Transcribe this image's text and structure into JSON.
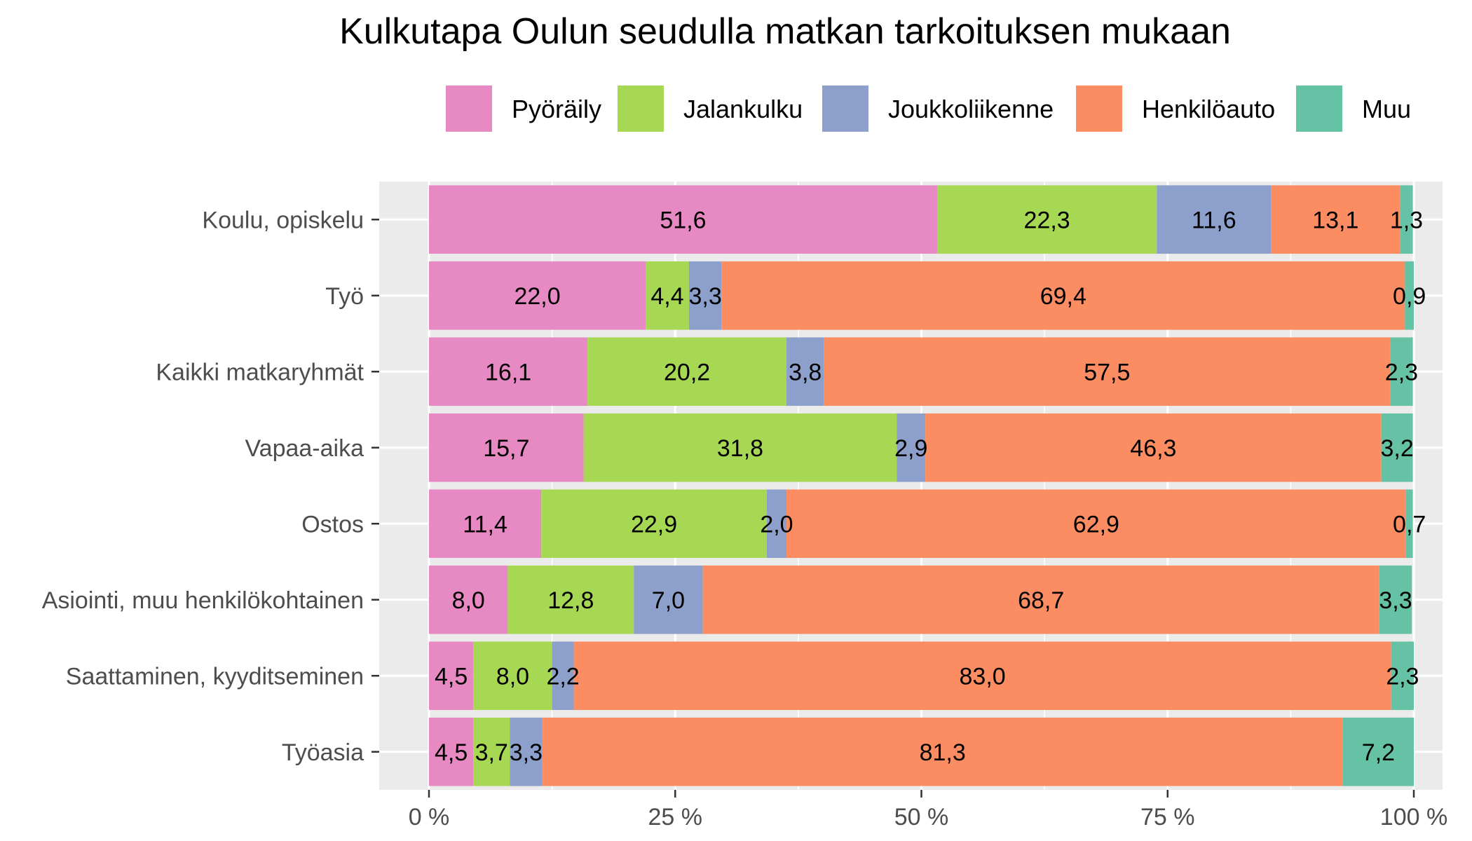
{
  "chart_data": {
    "type": "bar",
    "orientation": "horizontal",
    "stacked": true,
    "title": "Kulkutapa Oulun seudulla matkan tarkoituksen mukaan",
    "xlabel": "",
    "ylabel": "",
    "xlim": [
      0,
      100
    ],
    "x_ticks": [
      0,
      25,
      50,
      75,
      100
    ],
    "x_tick_labels": [
      "0 %",
      "25 %",
      "50 %",
      "75 %",
      "100 %"
    ],
    "grid": true,
    "legend_position": "top",
    "categories": [
      "Koulu, opiskelu",
      "Työ",
      "Kaikki matkaryhmät",
      "Vapaa-aika",
      "Ostos",
      "Asiointi, muu henkilökohtainen",
      "Saattaminen, kyyditseminen",
      "Työasia"
    ],
    "series": [
      {
        "name": "Pyöräily",
        "color": "#e78ac3",
        "values": [
          51.6,
          22.0,
          16.1,
          15.7,
          11.4,
          8.0,
          4.5,
          4.5
        ],
        "labels": [
          "51,6",
          "22,0",
          "16,1",
          "15,7",
          "11,4",
          "8,0",
          "4,5",
          "4,5"
        ]
      },
      {
        "name": "Jalankulku",
        "color": "#a6d854",
        "values": [
          22.3,
          4.4,
          20.2,
          31.8,
          22.9,
          12.8,
          8.0,
          3.7
        ],
        "labels": [
          "22,3",
          "4,4",
          "20,2",
          "31,8",
          "22,9",
          "12,8",
          "8,0",
          "3,7"
        ]
      },
      {
        "name": "Joukkoliikenne",
        "color": "#8da0cb",
        "values": [
          11.6,
          3.3,
          3.8,
          2.9,
          2.0,
          7.0,
          2.2,
          3.3
        ],
        "labels": [
          "11,6",
          "3,3",
          "3,8",
          "2,9",
          "2,0",
          "7,0",
          "2,2",
          "3,3"
        ]
      },
      {
        "name": "Henkilöauto",
        "color": "#fc8d62",
        "values": [
          13.1,
          69.4,
          57.5,
          46.3,
          62.9,
          68.7,
          83.0,
          81.3
        ],
        "labels": [
          "13,1",
          "69,4",
          "57,5",
          "46,3",
          "62,9",
          "68,7",
          "83,0",
          "81,3"
        ]
      },
      {
        "name": "Muu",
        "color": "#66c2a5",
        "values": [
          1.3,
          0.9,
          2.3,
          3.2,
          0.7,
          3.3,
          2.3,
          7.2
        ],
        "labels": [
          "1,3",
          "0,9",
          "2,3",
          "3,2",
          "0,7",
          "3,3",
          "2,3",
          "7,2"
        ]
      }
    ]
  }
}
